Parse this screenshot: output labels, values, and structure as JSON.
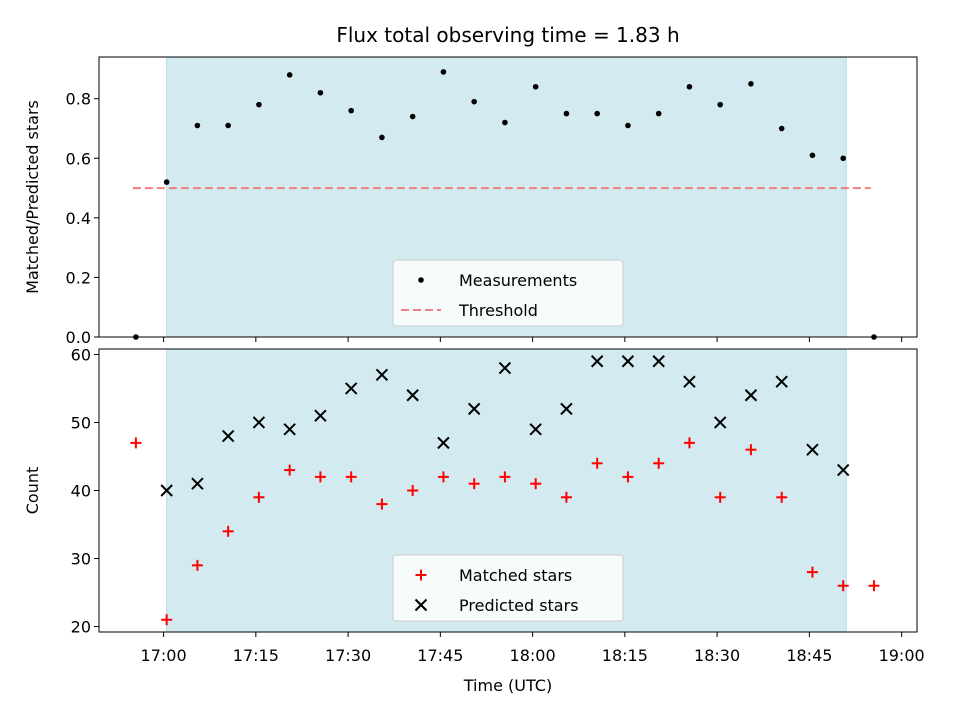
{
  "chart_data": {
    "type": "scatter",
    "title": "Flux total observing time = 1.83 h",
    "xlabel": "Time (UTC)",
    "x_ticks": [
      {
        "t": 0,
        "label": "17:00"
      },
      {
        "t": 15,
        "label": "17:15"
      },
      {
        "t": 30,
        "label": "17:30"
      },
      {
        "t": 45,
        "label": "17:45"
      },
      {
        "t": 60,
        "label": "18:00"
      },
      {
        "t": 75,
        "label": "18:15"
      },
      {
        "t": 90,
        "label": "18:30"
      },
      {
        "t": 105,
        "label": "18:45"
      },
      {
        "t": 120,
        "label": "19:00"
      }
    ],
    "x_range_minutes": [
      -10.5,
      122.5
    ],
    "shaded_span_minutes": [
      0.5,
      111
    ],
    "shade_color": "#d3eaf0",
    "panels": [
      {
        "ylabel": "Matched/Predicted stars",
        "ylim": [
          0,
          0.94
        ],
        "yticks": [
          0,
          0.2,
          0.4,
          0.6,
          0.8
        ],
        "ytick_labels": [
          "0.0",
          "0.2",
          "0.4",
          "0.6",
          "0.8"
        ],
        "legend": {
          "position": "lower center",
          "entries": [
            {
              "label": "Measurements",
              "marker": "dot",
              "color": "#000000"
            },
            {
              "label": "Threshold",
              "marker": "dashed-line",
              "color": "#f08080"
            }
          ]
        },
        "threshold": {
          "value": 0.5,
          "t_range": [
            -5,
            115
          ]
        },
        "series": [
          {
            "name": "Measurements",
            "marker": "dot",
            "color": "#000000",
            "t": [
              -4.5,
              0.5,
              5.5,
              10.5,
              15.5,
              20.5,
              25.5,
              30.5,
              35.5,
              40.5,
              45.5,
              50.5,
              55.5,
              60.5,
              65.5,
              70.5,
              75.5,
              80.5,
              85.5,
              90.5,
              95.5,
              100.5,
              105.5,
              110.5,
              115.5
            ],
            "values": [
              0.0,
              0.52,
              0.71,
              0.71,
              0.78,
              0.88,
              0.82,
              0.76,
              0.67,
              0.74,
              0.89,
              0.79,
              0.72,
              0.84,
              0.75,
              0.75,
              0.71,
              0.75,
              0.84,
              0.78,
              0.85,
              0.7,
              0.61,
              0.6,
              0.0
            ]
          }
        ]
      },
      {
        "ylabel": "Count",
        "ylim": [
          19.2,
          60.8
        ],
        "yticks": [
          20,
          30,
          40,
          50,
          60
        ],
        "ytick_labels": [
          "20",
          "30",
          "40",
          "50",
          "60"
        ],
        "legend": {
          "position": "lower center",
          "entries": [
            {
              "label": "Matched stars",
              "marker": "plus",
              "color": "#ff0000"
            },
            {
              "label": "Predicted stars",
              "marker": "x",
              "color": "#000000"
            }
          ]
        },
        "series": [
          {
            "name": "Matched stars",
            "marker": "plus",
            "color": "#ff0000",
            "t": [
              -4.5,
              0.5,
              5.5,
              10.5,
              15.5,
              20.5,
              25.5,
              30.5,
              35.5,
              40.5,
              45.5,
              50.5,
              55.5,
              60.5,
              65.5,
              70.5,
              75.5,
              80.5,
              85.5,
              90.5,
              95.5,
              100.5,
              105.5,
              110.5,
              115.5
            ],
            "values": [
              47,
              21,
              29,
              34,
              39,
              43,
              42,
              42,
              38,
              40,
              42,
              41,
              42,
              41,
              39,
              44,
              42,
              44,
              47,
              39,
              46,
              39,
              28,
              26,
              26
            ]
          },
          {
            "name": "Predicted stars",
            "marker": "x",
            "color": "#000000",
            "t": [
              0.5,
              5.5,
              10.5,
              15.5,
              20.5,
              25.5,
              30.5,
              35.5,
              40.5,
              45.5,
              50.5,
              55.5,
              60.5,
              65.5,
              70.5,
              75.5,
              80.5,
              85.5,
              90.5,
              95.5,
              100.5,
              105.5,
              110.5
            ],
            "values": [
              40,
              41,
              48,
              50,
              49,
              51,
              55,
              57,
              54,
              47,
              52,
              58,
              49,
              52,
              59,
              59,
              59,
              56,
              50,
              54,
              56,
              46,
              43
            ]
          }
        ]
      }
    ]
  }
}
